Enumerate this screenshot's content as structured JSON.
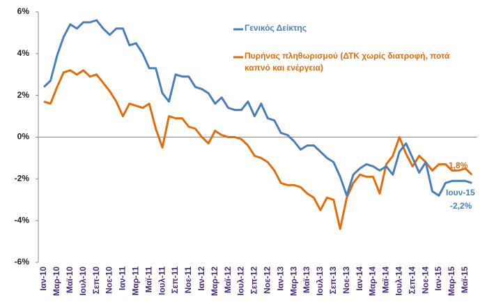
{
  "chart_data": {
    "type": "line",
    "categories": [
      "Ιαν-10",
      null,
      "Μαρ-10",
      null,
      "Μαϊ-10",
      null,
      "Ιουλ-10",
      null,
      "Σεπ-10",
      null,
      "Νοε-10",
      null,
      "Ιαν-11",
      null,
      "Μαρ-11",
      null,
      "Μαϊ-11",
      null,
      "Ιουλ-11",
      null,
      "Σεπ-11",
      null,
      "Νοε-11",
      null,
      "Ιαν-12",
      null,
      "Μαρ-12",
      null,
      "Μαϊ-12",
      null,
      "Ιουλ-12",
      null,
      "Σεπ-12",
      null,
      "Νοε-12",
      null,
      "Ιαν-13",
      null,
      "Μαρ-13",
      null,
      "Μαϊ-13",
      null,
      "Ιουλ-13",
      null,
      "Σεπ-13",
      null,
      "Νοε-13",
      null,
      "Ιαν-14",
      null,
      "Μαρ-14",
      null,
      "Μαϊ-14",
      null,
      "Ιουλ-14",
      null,
      "Σεπ-14",
      null,
      "Νοε-14",
      null,
      "Ιαν-15",
      null,
      "Μαρ-15",
      null,
      "Μαϊ-15",
      null
    ],
    "series": [
      {
        "name": "Γενικός Δείκτης",
        "color": "#4a7ebb",
        "values": [
          2.4,
          2.7,
          3.9,
          4.8,
          5.4,
          5.2,
          5.5,
          5.5,
          5.6,
          5.2,
          4.9,
          5.2,
          5.2,
          4.4,
          4.5,
          4.0,
          3.3,
          3.3,
          2.1,
          1.7,
          3.0,
          2.9,
          2.9,
          2.4,
          2.3,
          2.1,
          1.6,
          1.9,
          1.4,
          1.3,
          1.3,
          1.7,
          1.0,
          1.6,
          0.9,
          0.8,
          0.2,
          0.1,
          -0.2,
          -0.6,
          -0.4,
          -0.4,
          -0.7,
          -1.0,
          -1.2,
          -1.9,
          -2.8,
          -1.8,
          -1.5,
          -1.3,
          -1.4,
          -1.6,
          -1.4,
          -1.8,
          -0.7,
          -0.3,
          -1.0,
          -1.7,
          -1.2,
          -2.6,
          -2.8,
          -2.2,
          -2.1,
          -2.1,
          -2.1,
          -2.2
        ]
      },
      {
        "name": "Πυρήνας πληθωρισμού (ΔΤΚ χωρίς διατροφή, ποτά καπνό και ενέργεια)",
        "color": "#e46c0a",
        "values": [
          1.7,
          1.6,
          2.4,
          3.1,
          3.2,
          3.0,
          3.2,
          2.9,
          3.0,
          2.6,
          2.2,
          1.7,
          1.0,
          1.6,
          1.5,
          1.4,
          1.6,
          0.4,
          -0.5,
          1.0,
          0.9,
          0.9,
          0.5,
          0.4,
          0.0,
          -0.3,
          0.3,
          0.1,
          0.0,
          0.0,
          -0.1,
          -0.4,
          -0.9,
          -1.0,
          -1.2,
          -1.6,
          -2.2,
          -2.3,
          -2.3,
          -2.4,
          -2.7,
          -2.9,
          -3.5,
          -2.9,
          -3.0,
          -4.4,
          -2.9,
          -2.2,
          -1.8,
          -1.9,
          -1.9,
          -2.7,
          -1.3,
          -0.9,
          0.0,
          -0.8,
          -1.4,
          -0.9,
          -1.2,
          -1.6,
          -1.3,
          -1.3,
          -1.6,
          -1.6,
          -1.5,
          -1.8
        ]
      }
    ],
    "ylim": [
      -6,
      6
    ],
    "yticks": [
      {
        "value": -6,
        "label": "-6%"
      },
      {
        "value": -4,
        "label": "-4%"
      },
      {
        "value": -2,
        "label": "-2%"
      },
      {
        "value": 0,
        "label": "0%"
      },
      {
        "value": 2,
        "label": "2%"
      },
      {
        "value": 4,
        "label": "4%"
      },
      {
        "value": 6,
        "label": "6%"
      }
    ],
    "annotations": [
      "-1,8%",
      "Ιουν-15",
      "-2,2%"
    ]
  }
}
